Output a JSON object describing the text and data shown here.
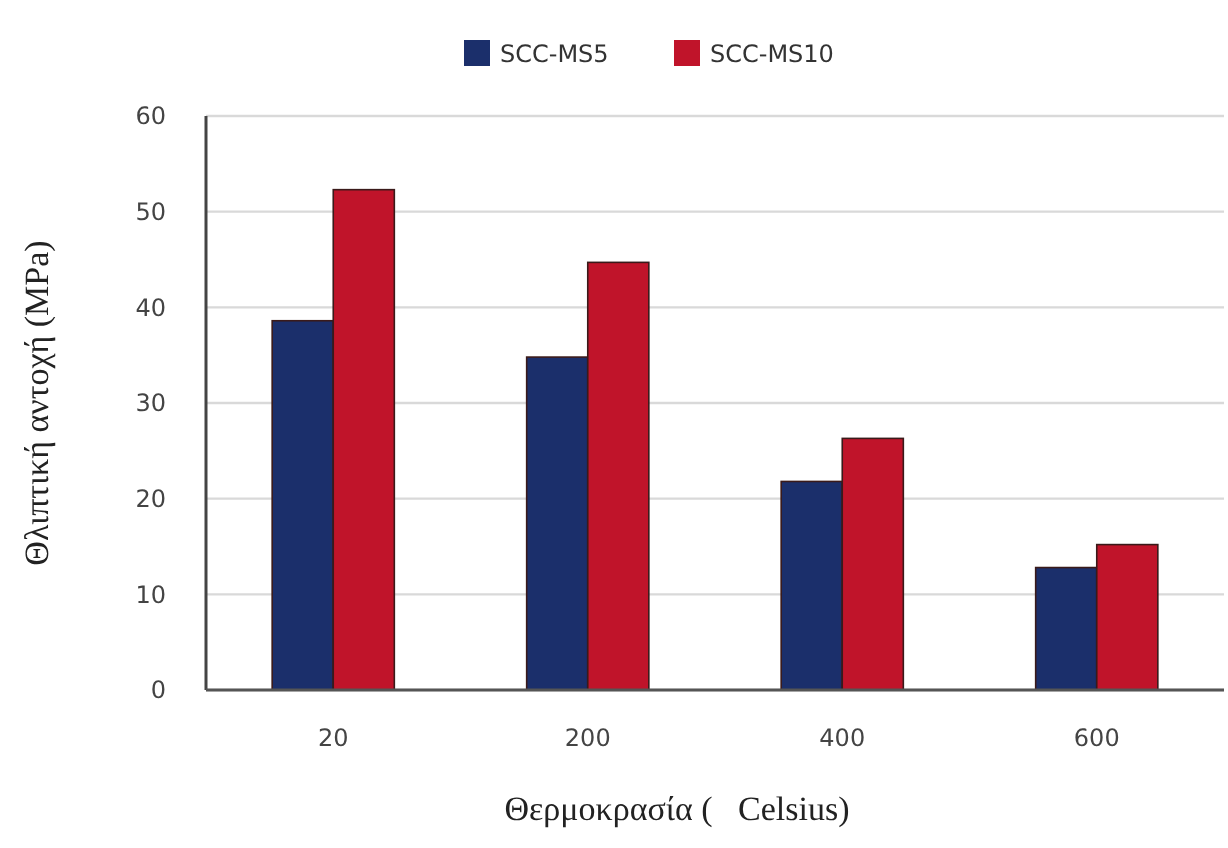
{
  "chart_data": {
    "type": "bar",
    "categories": [
      "20",
      "200",
      "400",
      "600"
    ],
    "series": [
      {
        "name": "SCC-MS5",
        "color": "#1b2f6b",
        "values": [
          38.6,
          34.8,
          21.8,
          12.8
        ]
      },
      {
        "name": "SCC-MS10",
        "color": "#c0142a",
        "values": [
          52.3,
          44.7,
          26.3,
          15.2
        ]
      }
    ],
    "ylim": [
      0,
      60
    ],
    "yticks": [
      0,
      10,
      20,
      30,
      40,
      50,
      60
    ],
    "grid": "y",
    "legend": "top",
    "xlabel": "Θερμοκρασία (   Celsius)",
    "ylabel": "Θλιπτική αντοχή (MPa)"
  }
}
